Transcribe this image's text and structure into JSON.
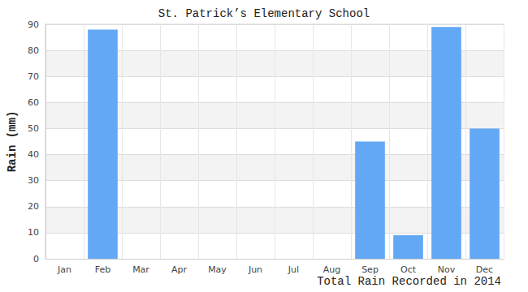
{
  "chart_data": {
    "type": "bar",
    "title": "St. Patrick’s Elementary School",
    "x_label": "Total Rain Recorded in 2014",
    "y_label": "Rain (mm)",
    "categories": [
      "Jan",
      "Feb",
      "Mar",
      "Apr",
      "May",
      "Jun",
      "Jul",
      "Aug",
      "Sep",
      "Oct",
      "Nov",
      "Dec"
    ],
    "values": [
      0,
      88,
      0,
      0,
      0,
      0,
      0,
      0,
      45,
      9,
      89,
      50
    ],
    "color": "#63a8f5",
    "ylim": [
      0,
      90
    ],
    "yticks": [
      0,
      10,
      20,
      30,
      40,
      50,
      60,
      70,
      80,
      90
    ],
    "grid": true
  }
}
